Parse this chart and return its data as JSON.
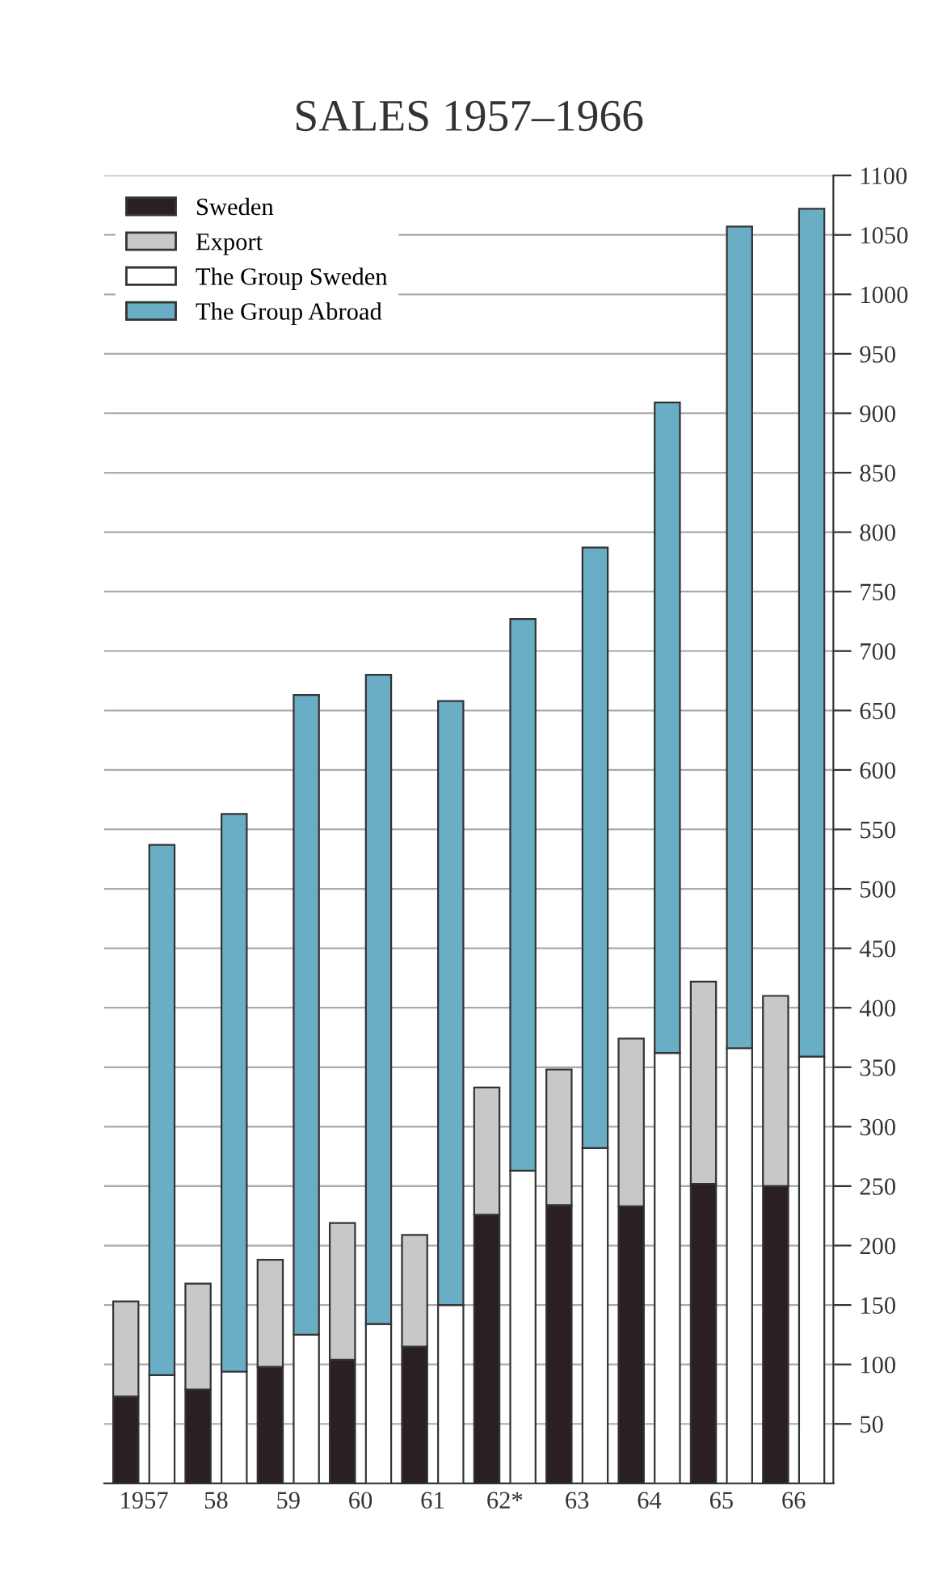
{
  "chart_data": {
    "type": "bar",
    "title": "SALES 1957–1966",
    "stacked": true,
    "categories": [
      "1957",
      null,
      "58",
      null,
      "59",
      null,
      "60",
      null,
      "61",
      null,
      "62*",
      null,
      "63",
      null,
      "64",
      null,
      "65",
      null,
      "66",
      null
    ],
    "series": [
      {
        "name": "Sweden",
        "color": "#2a2023",
        "values": [
          73,
          null,
          79,
          null,
          98,
          null,
          104,
          null,
          115,
          null,
          226,
          null,
          234,
          null,
          233,
          null,
          252,
          null,
          250,
          null
        ]
      },
      {
        "name": "Export",
        "color": "#c8c8c8",
        "values": [
          80,
          null,
          89,
          null,
          90,
          null,
          115,
          null,
          94,
          null,
          107,
          null,
          114,
          null,
          141,
          null,
          170,
          null,
          160,
          null
        ]
      },
      {
        "name": "The Group Sweden",
        "color": "#ffffff",
        "values": [
          null,
          91,
          null,
          94,
          null,
          125,
          null,
          134,
          null,
          150,
          null,
          263,
          null,
          282,
          null,
          362,
          null,
          366,
          null,
          359
        ]
      },
      {
        "name": "The Group Abroad",
        "color": "#6aaec6",
        "values": [
          null,
          446,
          null,
          469,
          null,
          538,
          null,
          546,
          null,
          508,
          null,
          464,
          null,
          505,
          null,
          547,
          null,
          691,
          null,
          713
        ]
      }
    ],
    "ylim": [
      0,
      1100
    ],
    "yticks": [
      50,
      100,
      150,
      200,
      250,
      300,
      350,
      400,
      450,
      500,
      550,
      600,
      650,
      700,
      750,
      800,
      850,
      900,
      950,
      1000,
      1050,
      1100
    ],
    "grid": "y",
    "legend": "top left"
  }
}
